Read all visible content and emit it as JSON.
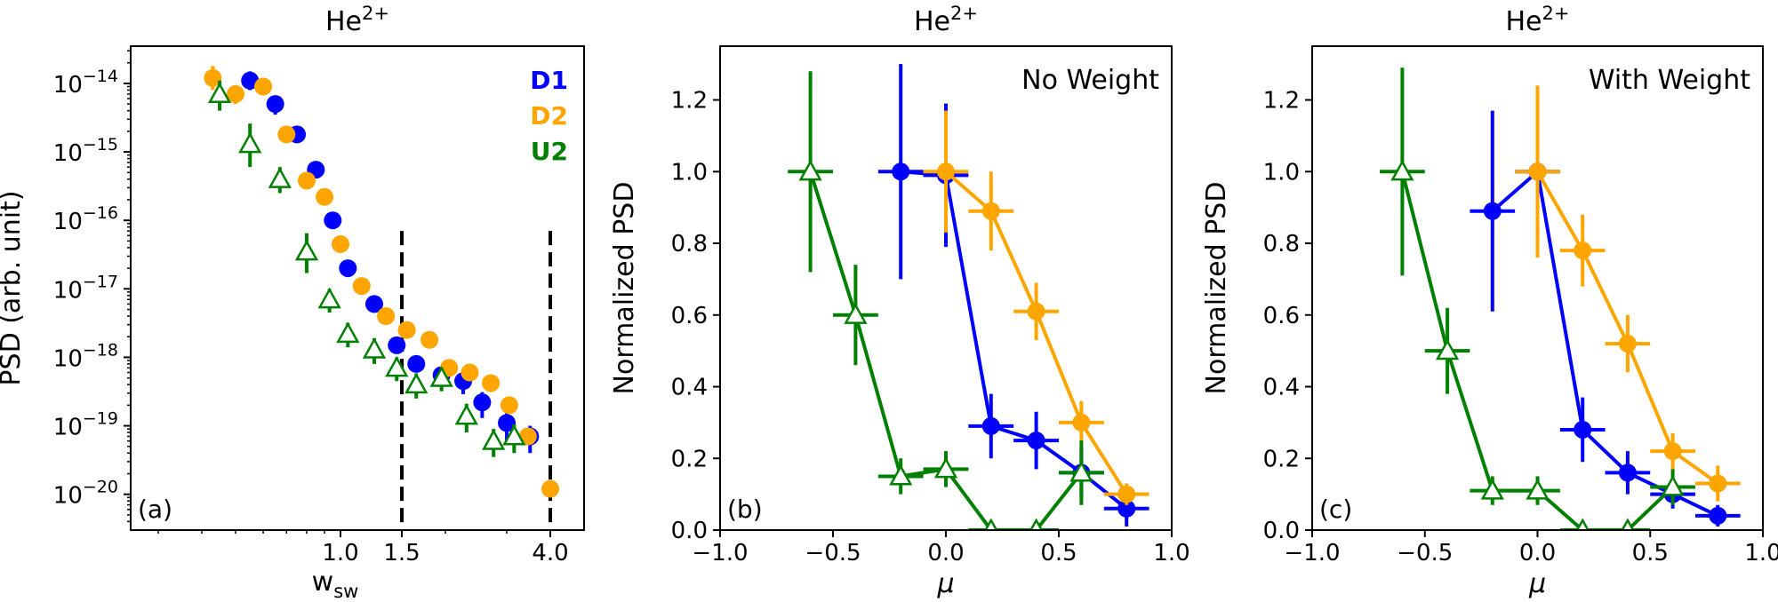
{
  "chart_data": [
    {
      "type": "scatter",
      "title": "He$^{2+}$",
      "title_main": "He",
      "title_sup": "2+",
      "panel_label": "(a)",
      "ylabel": "PSD (arb. unit)",
      "xlabel": "w",
      "xlabel_sub": "sw",
      "xscale": "log",
      "yscale": "log",
      "xlim": [
        0.25,
        5.0
      ],
      "ylim": [
        3e-21,
        3.5e-14
      ],
      "xticks": [
        1.0,
        1.5,
        4.0
      ],
      "xtick_labels": [
        "1.0",
        "1.5",
        "4.0"
      ],
      "yticks": [
        {
          "value": 1e-14,
          "exp": "−14"
        },
        {
          "value": 1e-15,
          "exp": "−15"
        },
        {
          "value": 1e-16,
          "exp": "−16"
        },
        {
          "value": 1e-17,
          "exp": "−17"
        },
        {
          "value": 1e-18,
          "exp": "−18"
        },
        {
          "value": 1e-19,
          "exp": "−19"
        },
        {
          "value": 1e-20,
          "exp": "−20"
        }
      ],
      "ytick_base": "10",
      "vlines": [
        1.5,
        4.0
      ],
      "legend": [
        {
          "label": "D1",
          "color": "#0000ff"
        },
        {
          "label": "D2",
          "color": "#ffa500"
        },
        {
          "label": "U2",
          "color": "#008000"
        }
      ],
      "series": [
        {
          "name": "D1",
          "marker": "circle",
          "color": "#0000ff",
          "x": [
            0.55,
            0.65,
            0.75,
            0.85,
            0.95,
            1.05,
            1.25,
            1.45,
            1.65,
            1.95,
            2.25,
            2.55,
            3.0,
            3.5
          ],
          "y": [
            1.1e-14,
            5e-15,
            1.8e-15,
            5.5e-16,
            1e-16,
            2e-17,
            6e-18,
            1.5e-18,
            8e-19,
            5.5e-19,
            4.5e-19,
            2.2e-19,
            1.1e-19,
            7e-20
          ],
          "yerr_low": [
            3e-15,
            1.5e-15,
            3e-16,
            1e-16,
            2.5e-17,
            4e-18,
            1.2e-18,
            3e-19,
            2e-19,
            1.5e-19,
            1.6e-19,
            9e-20,
            5e-20,
            3e-20
          ],
          "yerr_high": [
            4e-15,
            1.2e-15,
            3e-16,
            1e-16,
            2.5e-17,
            4e-18,
            1.2e-18,
            3e-19,
            2e-19,
            1.5e-19,
            1.3e-19,
            9e-20,
            5e-20,
            3e-20
          ]
        },
        {
          "name": "D2",
          "marker": "circle",
          "color": "#ffa500",
          "x": [
            0.43,
            0.5,
            0.6,
            0.7,
            0.8,
            0.9,
            1.0,
            1.15,
            1.35,
            1.55,
            1.8,
            2.05,
            2.35,
            2.7,
            3.05,
            3.45,
            4.0
          ],
          "y": [
            1.2e-14,
            7e-15,
            9e-15,
            1.8e-15,
            3.8e-16,
            2.2e-16,
            4.5e-17,
            1.1e-17,
            4e-18,
            2.5e-18,
            1.8e-18,
            7e-19,
            6e-19,
            4.2e-19,
            2e-19,
            7e-20,
            1.2e-20
          ],
          "yerr_low": [
            4e-15,
            2e-15,
            2e-15,
            3e-16,
            8e-17,
            4e-17,
            8e-18,
            2e-18,
            8e-19,
            5e-19,
            3e-19,
            1.3e-19,
            1.1e-19,
            8e-20,
            4e-20,
            1.5e-20,
            2e-21
          ],
          "yerr_high": [
            6e-15,
            2e-15,
            2e-15,
            3e-16,
            8e-17,
            4e-17,
            8e-18,
            2e-18,
            8e-19,
            5e-19,
            3e-19,
            1.3e-19,
            1.1e-19,
            8e-20,
            4e-20,
            1.5e-20,
            2e-21
          ]
        },
        {
          "name": "U2",
          "marker": "triangle",
          "color": "#008000",
          "x": [
            0.45,
            0.55,
            0.67,
            0.8,
            0.93,
            1.05,
            1.25,
            1.45,
            1.65,
            1.95,
            2.3,
            2.75,
            3.15
          ],
          "y": [
            7e-15,
            1.3e-15,
            4e-16,
            3.5e-17,
            7e-18,
            2.2e-18,
            1.3e-18,
            7e-19,
            4e-19,
            5e-19,
            1.4e-19,
            6e-20,
            7e-20
          ],
          "yerr_low": [
            3e-15,
            7e-16,
            1.5e-16,
            1.8e-17,
            2.5e-18,
            8e-19,
            5e-19,
            2.5e-19,
            1.5e-19,
            1.8e-19,
            6e-20,
            2.5e-20,
            3e-20
          ],
          "yerr_high": [
            4e-15,
            1.3e-15,
            2e-16,
            3e-17,
            3e-18,
            1e-18,
            6e-19,
            3e-19,
            1.8e-19,
            2e-19,
            7e-20,
            3e-20,
            3.5e-20
          ]
        }
      ]
    },
    {
      "type": "line",
      "title": "He$^{2+}$",
      "title_main": "He",
      "title_sup": "2+",
      "panel_label": "(b)",
      "annotation": "No Weight",
      "xlabel": "μ",
      "ylabel": "Normalized PSD",
      "xlim": [
        -1.0,
        1.0
      ],
      "ylim": [
        0.0,
        1.35
      ],
      "xticks": [
        -1.0,
        -0.5,
        0.0,
        0.5,
        1.0
      ],
      "xtick_labels": [
        "−1.0",
        "−0.5",
        "0.0",
        "0.5",
        "1.0"
      ],
      "yticks": [
        0.0,
        0.2,
        0.4,
        0.6,
        0.8,
        1.0,
        1.2
      ],
      "ytick_labels": [
        "0.0",
        "0.2",
        "0.4",
        "0.6",
        "0.8",
        "1.0",
        "1.2"
      ],
      "xerr": 0.1,
      "series": [
        {
          "name": "D1",
          "marker": "circle",
          "color": "#0000ff",
          "x": [
            -0.2,
            0.0,
            0.2,
            0.4,
            0.6,
            0.8
          ],
          "y": [
            1.0,
            0.99,
            0.29,
            0.25,
            0.16,
            0.06
          ],
          "yerr": [
            0.3,
            0.2,
            0.09,
            0.08,
            0.07,
            0.05
          ]
        },
        {
          "name": "D2",
          "marker": "circle",
          "color": "#ffa500",
          "x": [
            0.0,
            0.2,
            0.4,
            0.6,
            0.8
          ],
          "y": [
            1.0,
            0.89,
            0.61,
            0.3,
            0.1
          ],
          "yerr": [
            0.17,
            0.11,
            0.08,
            0.06,
            0.03
          ]
        },
        {
          "name": "U2",
          "marker": "triangle",
          "color": "#008000",
          "x": [
            -0.6,
            -0.4,
            -0.2,
            0.0,
            0.2,
            0.4,
            0.6
          ],
          "y": [
            1.0,
            0.6,
            0.15,
            0.17,
            0.0,
            0.0,
            0.16
          ],
          "yerr": [
            0.28,
            0.14,
            0.05,
            0.05,
            0.0,
            0.0,
            0.09
          ]
        }
      ]
    },
    {
      "type": "line",
      "title": "He$^{2+}$",
      "title_main": "He",
      "title_sup": "2+",
      "panel_label": "(c)",
      "annotation": "With Weight",
      "xlabel": "μ",
      "ylabel": "Normalized PSD",
      "xlim": [
        -1.0,
        1.0
      ],
      "ylim": [
        0.0,
        1.35
      ],
      "xticks": [
        -1.0,
        -0.5,
        0.0,
        0.5,
        1.0
      ],
      "xtick_labels": [
        "−1.0",
        "−0.5",
        "0.0",
        "0.5",
        "1.0"
      ],
      "yticks": [
        0.0,
        0.2,
        0.4,
        0.6,
        0.8,
        1.0,
        1.2
      ],
      "ytick_labels": [
        "0.0",
        "0.2",
        "0.4",
        "0.6",
        "0.8",
        "1.0",
        "1.2"
      ],
      "xerr": 0.1,
      "series": [
        {
          "name": "D1",
          "marker": "circle",
          "color": "#0000ff",
          "x": [
            -0.2,
            0.0,
            0.2,
            0.4,
            0.6,
            0.8
          ],
          "y": [
            0.89,
            1.0,
            0.28,
            0.16,
            0.1,
            0.04
          ],
          "yerr": [
            0.28,
            0.18,
            0.09,
            0.06,
            0.04,
            0.03
          ]
        },
        {
          "name": "D2",
          "marker": "circle",
          "color": "#ffa500",
          "x": [
            0.0,
            0.2,
            0.4,
            0.6,
            0.8
          ],
          "y": [
            1.0,
            0.78,
            0.52,
            0.22,
            0.13
          ],
          "yerr": [
            0.24,
            0.1,
            0.08,
            0.05,
            0.05
          ]
        },
        {
          "name": "U2",
          "marker": "triangle",
          "color": "#008000",
          "x": [
            -0.6,
            -0.4,
            -0.2,
            0.0,
            0.2,
            0.4,
            0.6
          ],
          "y": [
            1.0,
            0.5,
            0.11,
            0.11,
            0.0,
            0.0,
            0.12
          ],
          "yerr": [
            0.29,
            0.12,
            0.04,
            0.04,
            0.0,
            0.0,
            0.05
          ]
        }
      ]
    }
  ]
}
